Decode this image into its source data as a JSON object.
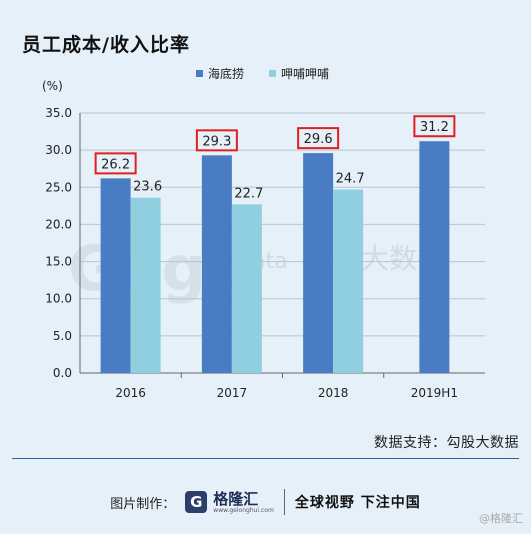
{
  "title": "员工成本/收入比率",
  "source_text": "数据支持：勾股大数据",
  "footer": {
    "label": "图片制作：",
    "logo_name": "格隆汇",
    "logo_url": "www.gelonghui.com",
    "slogan": "全球视野 下注中国"
  },
  "watermark_text": "@格隆汇",
  "chart_watermark": {
    "brand": "Gogu",
    "suffix": "data",
    "cn": "勾股大数据"
  },
  "colors": {
    "series1": "#4a7cc4",
    "series2": "#8fcfe0",
    "highlight_box": "#e02020",
    "background": "#e6f0f8",
    "grid": "#b8c4d0"
  },
  "chart_data": {
    "type": "bar",
    "yunit": "(%)",
    "categories": [
      "2016",
      "2017",
      "2018",
      "2019H1"
    ],
    "series": [
      {
        "name": "海底捞",
        "values": [
          26.2,
          29.3,
          29.6,
          31.2
        ],
        "highlighted": true
      },
      {
        "name": "呷哺呷哺",
        "values": [
          23.6,
          22.7,
          24.7,
          null
        ],
        "highlighted": false
      }
    ],
    "ylim": [
      0,
      35
    ],
    "yticks": [
      "0.0",
      "5.0",
      "10.0",
      "15.0",
      "20.0",
      "25.0",
      "30.0",
      "35.0"
    ],
    "grid": true,
    "legend_position": "top"
  }
}
